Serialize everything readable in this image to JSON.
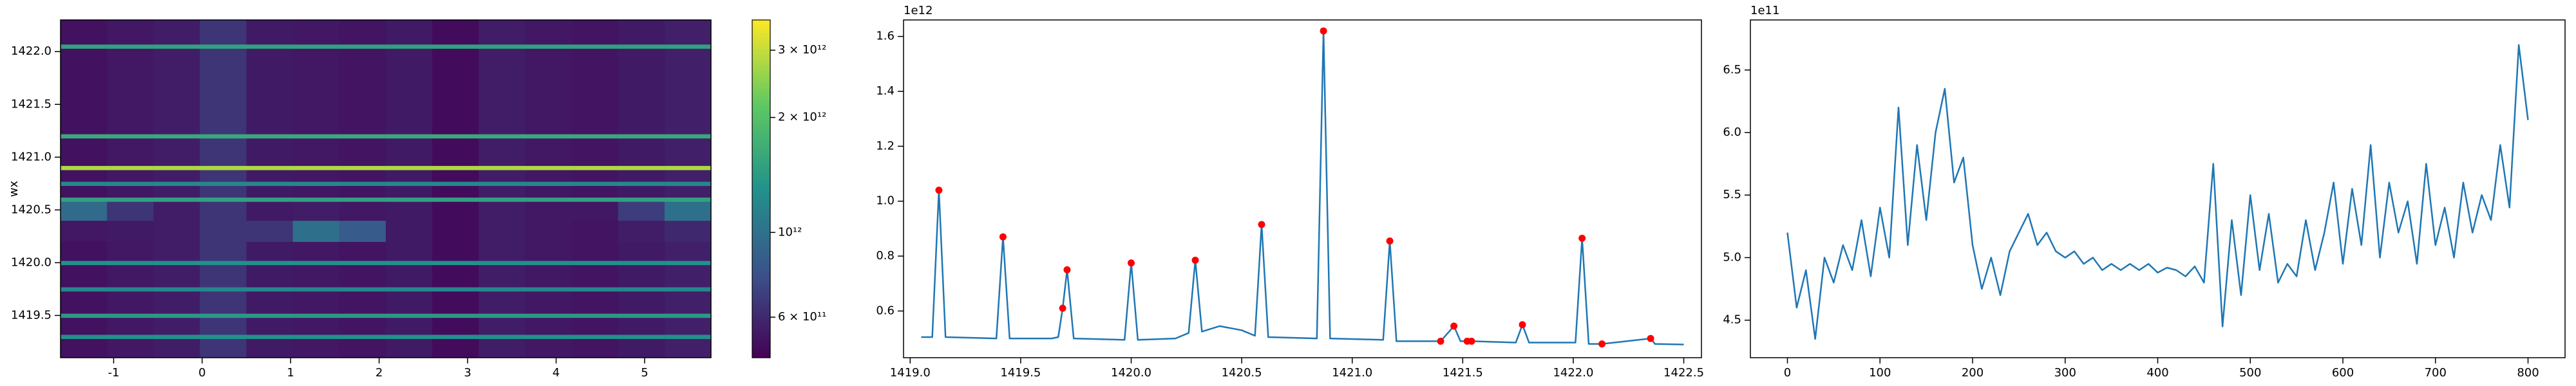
{
  "chart_data": [
    {
      "type": "heatmap",
      "ylabel": "wx",
      "colormap": "viridis",
      "xlim": [
        -1.6,
        5.75
      ],
      "xticks": [
        -1,
        0,
        1,
        2,
        3,
        4,
        5
      ],
      "ylim": [
        1419.1,
        1422.3
      ],
      "yticks": [
        1419.5,
        {
          "value": 1420,
          "label": "1420.0"
        },
        1420.5,
        {
          "value": 1421,
          "label": "1421.0"
        },
        1421.5,
        {
          "value": 1422,
          "label": "1422.0"
        }
      ],
      "xbins": [
        -1.6,
        -1.075,
        -0.55,
        -0.025,
        0.5,
        1.025,
        1.55,
        2.075,
        2.6,
        3.125,
        3.65,
        4.175,
        4.7,
        5.225,
        5.75
      ],
      "ybins": [
        1419.1,
        1419.28,
        1419.32,
        1419.48,
        1419.52,
        1419.73,
        1419.77,
        1419.98,
        1420.02,
        1420.2,
        1420.4,
        1420.58,
        1420.62,
        1420.73,
        1420.77,
        1420.88,
        1420.92,
        1421.18,
        1421.22,
        1422.03,
        1422.07,
        1422.3
      ],
      "values": [
        [
          520000000000.0,
          540000000000.0,
          560000000000.0,
          650000000000.0,
          550000000000.0,
          540000000000.0,
          530000000000.0,
          550000000000.0,
          500000000000.0,
          560000000000.0,
          540000000000.0,
          530000000000.0,
          550000000000.0,
          570000000000.0
        ],
        [
          1300000000000.0,
          1300000000000.0,
          1300000000000.0,
          1300000000000.0,
          1300000000000.0,
          1300000000000.0,
          1300000000000.0,
          1300000000000.0,
          1300000000000.0,
          1300000000000.0,
          1300000000000.0,
          1300000000000.0,
          1300000000000.0,
          1300000000000.0
        ],
        [
          520000000000.0,
          540000000000.0,
          560000000000.0,
          650000000000.0,
          550000000000.0,
          540000000000.0,
          530000000000.0,
          550000000000.0,
          500000000000.0,
          560000000000.0,
          540000000000.0,
          530000000000.0,
          550000000000.0,
          570000000000.0
        ],
        [
          1400000000000.0,
          1400000000000.0,
          1400000000000.0,
          1400000000000.0,
          1400000000000.0,
          1400000000000.0,
          1400000000000.0,
          1400000000000.0,
          1400000000000.0,
          1400000000000.0,
          1400000000000.0,
          1400000000000.0,
          1400000000000.0,
          1400000000000.0
        ],
        [
          520000000000.0,
          540000000000.0,
          560000000000.0,
          650000000000.0,
          550000000000.0,
          540000000000.0,
          530000000000.0,
          550000000000.0,
          500000000000.0,
          560000000000.0,
          540000000000.0,
          530000000000.0,
          550000000000.0,
          570000000000.0
        ],
        [
          1200000000000.0,
          1200000000000.0,
          1200000000000.0,
          1200000000000.0,
          1200000000000.0,
          1200000000000.0,
          1200000000000.0,
          1200000000000.0,
          1200000000000.0,
          1200000000000.0,
          1200000000000.0,
          1200000000000.0,
          1200000000000.0,
          1200000000000.0
        ],
        [
          520000000000.0,
          540000000000.0,
          560000000000.0,
          650000000000.0,
          550000000000.0,
          540000000000.0,
          530000000000.0,
          550000000000.0,
          500000000000.0,
          560000000000.0,
          540000000000.0,
          530000000000.0,
          550000000000.0,
          570000000000.0
        ],
        [
          1300000000000.0,
          1300000000000.0,
          1300000000000.0,
          1300000000000.0,
          1300000000000.0,
          1300000000000.0,
          1300000000000.0,
          1300000000000.0,
          1300000000000.0,
          1300000000000.0,
          1300000000000.0,
          1300000000000.0,
          1300000000000.0,
          1300000000000.0
        ],
        [
          520000000000.0,
          540000000000.0,
          560000000000.0,
          650000000000.0,
          550000000000.0,
          540000000000.0,
          530000000000.0,
          550000000000.0,
          500000000000.0,
          560000000000.0,
          540000000000.0,
          530000000000.0,
          550000000000.0,
          570000000000.0
        ],
        [
          540000000000.0,
          550000000000.0,
          560000000000.0,
          650000000000.0,
          650000000000.0,
          1000000000000.0,
          850000000000.0,
          550000000000.0,
          500000000000.0,
          560000000000.0,
          540000000000.0,
          530000000000.0,
          560000000000.0,
          600000000000.0
        ],
        [
          950000000000.0,
          650000000000.0,
          560000000000.0,
          650000000000.0,
          550000000000.0,
          560000000000.0,
          540000000000.0,
          550000000000.0,
          500000000000.0,
          560000000000.0,
          540000000000.0,
          540000000000.0,
          680000000000.0,
          1000000000000.0
        ],
        [
          1500000000000.0,
          1500000000000.0,
          1500000000000.0,
          1500000000000.0,
          1500000000000.0,
          1500000000000.0,
          1500000000000.0,
          1500000000000.0,
          1500000000000.0,
          1500000000000.0,
          1500000000000.0,
          1500000000000.0,
          1500000000000.0,
          1500000000000.0
        ],
        [
          520000000000.0,
          540000000000.0,
          560000000000.0,
          650000000000.0,
          550000000000.0,
          540000000000.0,
          530000000000.0,
          550000000000.0,
          500000000000.0,
          560000000000.0,
          540000000000.0,
          530000000000.0,
          550000000000.0,
          570000000000.0
        ],
        [
          1200000000000.0,
          1200000000000.0,
          1200000000000.0,
          1200000000000.0,
          1200000000000.0,
          1200000000000.0,
          1200000000000.0,
          1200000000000.0,
          1200000000000.0,
          1200000000000.0,
          1200000000000.0,
          1200000000000.0,
          1200000000000.0,
          1200000000000.0
        ],
        [
          520000000000.0,
          540000000000.0,
          560000000000.0,
          650000000000.0,
          550000000000.0,
          540000000000.0,
          530000000000.0,
          550000000000.0,
          500000000000.0,
          560000000000.0,
          540000000000.0,
          530000000000.0,
          550000000000.0,
          570000000000.0
        ],
        [
          2800000000000.0,
          2800000000000.0,
          2800000000000.0,
          2800000000000.0,
          2800000000000.0,
          2800000000000.0,
          2800000000000.0,
          2800000000000.0,
          2800000000000.0,
          2800000000000.0,
          2800000000000.0,
          2800000000000.0,
          2800000000000.0,
          2800000000000.0
        ],
        [
          520000000000.0,
          540000000000.0,
          560000000000.0,
          650000000000.0,
          550000000000.0,
          540000000000.0,
          530000000000.0,
          550000000000.0,
          500000000000.0,
          560000000000.0,
          540000000000.0,
          530000000000.0,
          550000000000.0,
          570000000000.0
        ],
        [
          1600000000000.0,
          1600000000000.0,
          1600000000000.0,
          1600000000000.0,
          1600000000000.0,
          1600000000000.0,
          1600000000000.0,
          1600000000000.0,
          1600000000000.0,
          1600000000000.0,
          1600000000000.0,
          1600000000000.0,
          1600000000000.0,
          1600000000000.0
        ],
        [
          520000000000.0,
          540000000000.0,
          560000000000.0,
          650000000000.0,
          550000000000.0,
          540000000000.0,
          530000000000.0,
          550000000000.0,
          500000000000.0,
          560000000000.0,
          540000000000.0,
          530000000000.0,
          550000000000.0,
          570000000000.0
        ],
        [
          1500000000000.0,
          1500000000000.0,
          1500000000000.0,
          1500000000000.0,
          1500000000000.0,
          1500000000000.0,
          1500000000000.0,
          1500000000000.0,
          1500000000000.0,
          1500000000000.0,
          1500000000000.0,
          1500000000000.0,
          1500000000000.0,
          1500000000000.0
        ],
        [
          520000000000.0,
          540000000000.0,
          560000000000.0,
          650000000000.0,
          550000000000.0,
          540000000000.0,
          530000000000.0,
          550000000000.0,
          500000000000.0,
          560000000000.0,
          540000000000.0,
          530000000000.0,
          550000000000.0,
          570000000000.0
        ]
      ],
      "colorbar": {
        "scale": "log",
        "lim": [
          470000000000.0,
          3600000000000.0
        ],
        "ticks": [
          {
            "value": 600000000000.0,
            "label": "6 × 10¹¹"
          },
          {
            "value": 1000000000000.0,
            "label": "10¹²"
          },
          {
            "value": 2000000000000.0,
            "label": "2 × 10¹²"
          },
          {
            "value": 3000000000000.0,
            "label": "3 × 10¹²"
          }
        ]
      }
    },
    {
      "type": "line",
      "offset_label": "1e12",
      "xlim": [
        1418.97,
        1422.58
      ],
      "xticks": [
        {
          "value": 1419,
          "label": "1419.0"
        },
        1419.5,
        {
          "value": 1420,
          "label": "1420.0"
        },
        1420.5,
        {
          "value": 1421,
          "label": "1421.0"
        },
        1421.5,
        {
          "value": 1422,
          "label": "1422.0"
        },
        1422.5
      ],
      "ylim": [
        0.43,
        1.66
      ],
      "yticks": [
        0.6,
        0.8,
        {
          "value": 1,
          "label": "1.0"
        },
        1.2,
        1.4,
        1.6
      ],
      "series": [
        {
          "color": "#1f77b4",
          "marker": "none",
          "x": [
            1419.05,
            1419.1,
            1419.13,
            1419.16,
            1419.39,
            1419.42,
            1419.45,
            1419.64,
            1419.67,
            1419.69,
            1419.71,
            1419.74,
            1419.97,
            1420.0,
            1420.03,
            1420.2,
            1420.26,
            1420.29,
            1420.32,
            1420.4,
            1420.5,
            1420.56,
            1420.59,
            1420.62,
            1420.84,
            1420.87,
            1420.9,
            1421.14,
            1421.17,
            1421.2,
            1421.4,
            1421.46,
            1421.49,
            1421.52,
            1421.54,
            1421.74,
            1421.77,
            1421.8,
            1422.01,
            1422.04,
            1422.07,
            1422.13,
            1422.35,
            1422.37,
            1422.5
          ],
          "values": [
            0.505,
            0.505,
            1.04,
            0.505,
            0.5,
            0.87,
            0.5,
            0.5,
            0.505,
            0.61,
            0.75,
            0.5,
            0.495,
            0.775,
            0.495,
            0.5,
            0.52,
            0.785,
            0.525,
            0.545,
            0.53,
            0.51,
            0.915,
            0.505,
            0.5,
            1.62,
            0.5,
            0.495,
            0.855,
            0.49,
            0.49,
            0.545,
            0.49,
            0.49,
            0.49,
            0.485,
            0.55,
            0.485,
            0.485,
            0.865,
            0.48,
            0.48,
            0.5,
            0.48,
            0.478
          ]
        },
        {
          "color": "red",
          "marker": "o",
          "x": [
            1419.13,
            1419.42,
            1419.69,
            1419.71,
            1420.0,
            1420.29,
            1420.59,
            1420.87,
            1421.17,
            1421.4,
            1421.46,
            1421.52,
            1421.54,
            1421.77,
            1422.04,
            1422.13,
            1422.35
          ],
          "values": [
            1.04,
            0.87,
            0.61,
            0.75,
            0.775,
            0.785,
            0.915,
            1.62,
            0.855,
            0.49,
            0.545,
            0.49,
            0.49,
            0.55,
            0.865,
            0.48,
            0.5
          ]
        }
      ]
    },
    {
      "type": "line",
      "offset_label": "1e11",
      "xlim": [
        -40,
        840
      ],
      "xticks": [
        0,
        100,
        200,
        300,
        400,
        500,
        600,
        700,
        800
      ],
      "ylim": [
        4.2,
        6.9
      ],
      "yticks": [
        4.5,
        {
          "value": 5,
          "label": "5.0"
        },
        5.5,
        {
          "value": 6,
          "label": "6.0"
        },
        6.5
      ],
      "series": [
        {
          "color": "#1f77b4",
          "marker": "none",
          "x": [
            0,
            10,
            20,
            30,
            40,
            50,
            60,
            70,
            80,
            90,
            100,
            110,
            120,
            130,
            140,
            150,
            160,
            170,
            180,
            190,
            200,
            210,
            220,
            230,
            240,
            250,
            260,
            270,
            280,
            290,
            300,
            310,
            320,
            330,
            340,
            350,
            360,
            370,
            380,
            390,
            400,
            410,
            420,
            430,
            440,
            450,
            460,
            470,
            480,
            490,
            500,
            510,
            520,
            530,
            540,
            550,
            560,
            570,
            580,
            590,
            600,
            610,
            620,
            630,
            640,
            650,
            660,
            670,
            680,
            690,
            700,
            710,
            720,
            730,
            740,
            750,
            760,
            770,
            780,
            790,
            800
          ],
          "values": [
            5.2,
            4.6,
            4.9,
            4.35,
            5.0,
            4.8,
            5.1,
            4.9,
            5.3,
            4.85,
            5.4,
            5.0,
            6.2,
            5.1,
            5.9,
            5.3,
            6.0,
            6.35,
            5.6,
            5.8,
            5.1,
            4.75,
            5.0,
            4.7,
            5.05,
            5.2,
            5.35,
            5.1,
            5.2,
            5.05,
            5.0,
            5.05,
            4.95,
            5.0,
            4.9,
            4.95,
            4.9,
            4.95,
            4.9,
            4.95,
            4.88,
            4.92,
            4.9,
            4.85,
            4.93,
            4.8,
            5.75,
            4.45,
            5.3,
            4.7,
            5.5,
            4.9,
            5.35,
            4.8,
            4.95,
            4.85,
            5.3,
            4.9,
            5.2,
            5.6,
            4.95,
            5.55,
            5.1,
            5.9,
            5.0,
            5.6,
            5.2,
            5.45,
            4.95,
            5.75,
            5.1,
            5.4,
            5.0,
            5.6,
            5.2,
            5.5,
            5.3,
            5.9,
            5.4,
            6.7,
            6.1
          ]
        }
      ]
    }
  ]
}
